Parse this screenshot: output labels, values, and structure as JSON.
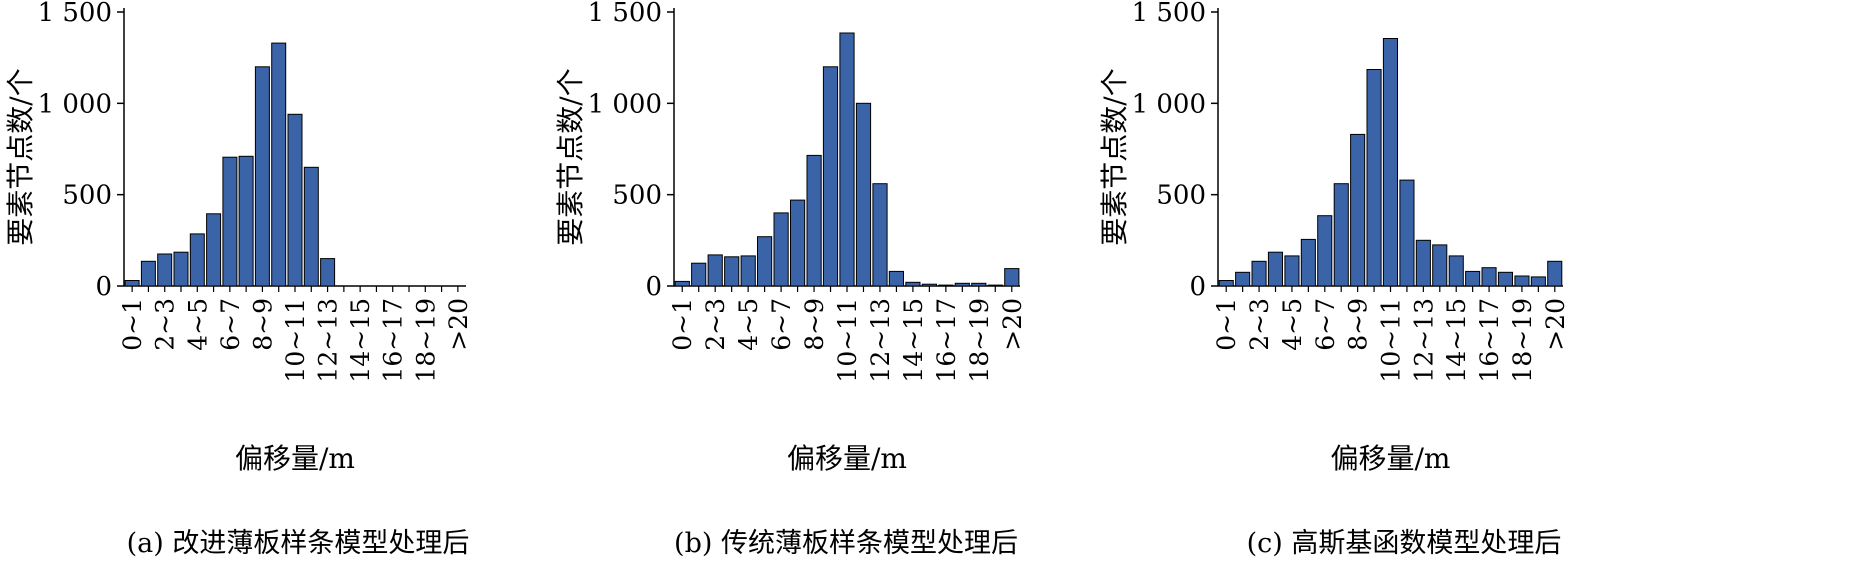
{
  "chart_data": [
    {
      "type": "bar",
      "caption": "(a) 改进薄板样条模型处理后",
      "xlabel": "偏移量/m",
      "ylabel": "要素节点数/个",
      "ylim": [
        0,
        1500
      ],
      "yticks": [
        0,
        500,
        1000,
        1500
      ],
      "ytick_labels": [
        "0",
        "500",
        "1 000",
        "1 500"
      ],
      "categories": [
        "0~1",
        "1~2",
        "2~3",
        "3~4",
        "4~5",
        "5~6",
        "6~7",
        "7~8",
        "8~9",
        "9~10",
        "10~11",
        "11~12",
        "12~13",
        "13~14",
        "14~15",
        "15~16",
        "16~17",
        "17~18",
        "18~19",
        "19~20",
        ">20"
      ],
      "tick_labels": [
        "0~1",
        "2~3",
        "4~5",
        "6~7",
        "8~9",
        "10~11",
        "12~13",
        "14~15",
        "16~17",
        "18~19",
        ">20"
      ],
      "values": [
        30,
        135,
        175,
        185,
        285,
        395,
        705,
        710,
        1200,
        1330,
        940,
        650,
        150,
        0,
        0,
        0,
        0,
        0,
        0,
        0,
        0
      ],
      "bar_color": "#3b63a8"
    },
    {
      "type": "bar",
      "caption": "(b) 传统薄板样条模型处理后",
      "xlabel": "偏移量/m",
      "ylabel": "要素节点数/个",
      "ylim": [
        0,
        1500
      ],
      "yticks": [
        0,
        500,
        1000,
        1500
      ],
      "ytick_labels": [
        "0",
        "500",
        "1 000",
        "1 500"
      ],
      "categories": [
        "0~1",
        "1~2",
        "2~3",
        "3~4",
        "4~5",
        "5~6",
        "6~7",
        "7~8",
        "8~9",
        "9~10",
        "10~11",
        "11~12",
        "12~13",
        "13~14",
        "14~15",
        "15~16",
        "16~17",
        "17~18",
        "18~19",
        "19~20",
        ">20"
      ],
      "tick_labels": [
        "0~1",
        "2~3",
        "4~5",
        "6~7",
        "8~9",
        "10~11",
        "12~13",
        "14~15",
        "16~17",
        "18~19",
        ">20"
      ],
      "values": [
        25,
        125,
        170,
        160,
        165,
        270,
        400,
        470,
        715,
        1200,
        1385,
        1000,
        560,
        80,
        20,
        10,
        5,
        15,
        15,
        5,
        95
      ],
      "bar_color": "#3b63a8"
    },
    {
      "type": "bar",
      "caption": "(c) 高斯基函数模型处理后",
      "xlabel": "偏移量/m",
      "ylabel": "要素节点数/个",
      "ylim": [
        0,
        1500
      ],
      "yticks": [
        0,
        500,
        1000,
        1500
      ],
      "ytick_labels": [
        "0",
        "500",
        "1 000",
        "1 500"
      ],
      "categories": [
        "0~1",
        "1~2",
        "2~3",
        "3~4",
        "4~5",
        "5~6",
        "6~7",
        "7~8",
        "8~9",
        "9~10",
        "10~11",
        "11~12",
        "12~13",
        "13~14",
        "14~15",
        "15~16",
        "16~17",
        "17~18",
        "18~19",
        "19~20",
        ">20"
      ],
      "tick_labels": [
        "0~1",
        "2~3",
        "4~5",
        "6~7",
        "8~9",
        "10~11",
        "12~13",
        "14~15",
        "16~17",
        "18~19",
        ">20"
      ],
      "values": [
        30,
        75,
        135,
        185,
        165,
        255,
        385,
        560,
        830,
        1185,
        1355,
        580,
        250,
        225,
        165,
        80,
        100,
        75,
        55,
        50,
        135
      ],
      "bar_color": "#3b63a8"
    }
  ]
}
